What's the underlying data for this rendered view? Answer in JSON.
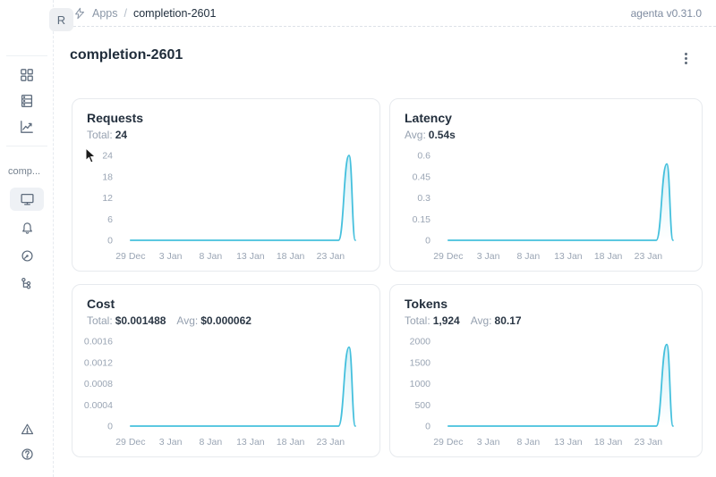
{
  "header": {
    "logo_letter": "R",
    "breadcrumb": {
      "section": "Apps",
      "separator": "/",
      "current": "completion-2601"
    },
    "version": "agenta v0.31.0"
  },
  "sidebar": {
    "app_label": "comp...",
    "icon_names": [
      "apps-grid-icon",
      "database-icon",
      "trend-chart-icon",
      "monitor-icon",
      "bell-icon",
      "gauge-icon",
      "tree-branch-icon",
      "warning-triangle-icon",
      "help-circle-icon"
    ],
    "selected_icon": "monitor-icon"
  },
  "page": {
    "title": "completion-2601"
  },
  "colors": {
    "accent_line": "#45c0dd",
    "accent_fill": "rgba(69,192,221,0.18)",
    "axis_text": "#9aa5b4",
    "text_dark": "#232f3d",
    "text_gray": "#96a1b0",
    "card_border": "#e7eaee"
  },
  "chart_data": [
    {
      "type": "area",
      "title": "Requests",
      "stats": [
        {
          "label": "Total:",
          "value": "24"
        }
      ],
      "x_tick_labels": [
        "29 Dec",
        "3 Jan",
        "8 Jan",
        "13 Jan",
        "18 Jan",
        "23 Jan"
      ],
      "y_ticks": [
        "24",
        "18",
        "12",
        "6",
        "0"
      ],
      "ylim": [
        0,
        24
      ],
      "points": [
        [
          0.048,
          0
        ],
        [
          0.915,
          0
        ],
        [
          0.959,
          24
        ],
        [
          0.985,
          0
        ]
      ],
      "summary": "Flat at 0 from 29 Dec, single spike to 24 requests around 26 Jan"
    },
    {
      "type": "area",
      "title": "Latency",
      "stats": [
        {
          "label": "Avg:",
          "value": "0.54s"
        }
      ],
      "x_tick_labels": [
        "29 Dec",
        "3 Jan",
        "8 Jan",
        "13 Jan",
        "18 Jan",
        "23 Jan"
      ],
      "y_ticks": [
        "0.6",
        "0.45",
        "0.3",
        "0.15",
        "0"
      ],
      "ylim": [
        0,
        0.6
      ],
      "points": [
        [
          0.048,
          0
        ],
        [
          0.915,
          0
        ],
        [
          0.959,
          0.54
        ],
        [
          0.985,
          0
        ]
      ],
      "summary": "Flat at 0, single spike to ~0.54s around 26 Jan"
    },
    {
      "type": "area",
      "title": "Cost",
      "stats": [
        {
          "label": "Total:",
          "value": "$0.001488"
        },
        {
          "label": "Avg:",
          "value": "$0.000062"
        }
      ],
      "x_tick_labels": [
        "29 Dec",
        "3 Jan",
        "8 Jan",
        "13 Jan",
        "18 Jan",
        "23 Jan"
      ],
      "y_ticks": [
        "0.0016",
        "0.0012",
        "0.0008",
        "0.0004",
        "0"
      ],
      "ylim": [
        0,
        0.0016
      ],
      "points": [
        [
          0.048,
          0
        ],
        [
          0.915,
          0
        ],
        [
          0.959,
          0.001488
        ],
        [
          0.985,
          0
        ]
      ],
      "summary": "Flat at 0, single spike to ~$0.0015 around 26 Jan"
    },
    {
      "type": "area",
      "title": "Tokens",
      "stats": [
        {
          "label": "Total:",
          "value": "1,924"
        },
        {
          "label": "Avg:",
          "value": "80.17"
        }
      ],
      "x_tick_labels": [
        "29 Dec",
        "3 Jan",
        "8 Jan",
        "13 Jan",
        "18 Jan",
        "23 Jan"
      ],
      "y_ticks": [
        "2000",
        "1500",
        "1000",
        "500",
        "0"
      ],
      "ylim": [
        0,
        2000
      ],
      "points": [
        [
          0.048,
          0
        ],
        [
          0.915,
          0
        ],
        [
          0.959,
          1924
        ],
        [
          0.985,
          0
        ]
      ],
      "summary": "Flat at 0, single spike to ~1924 tokens around 26 Jan"
    }
  ]
}
